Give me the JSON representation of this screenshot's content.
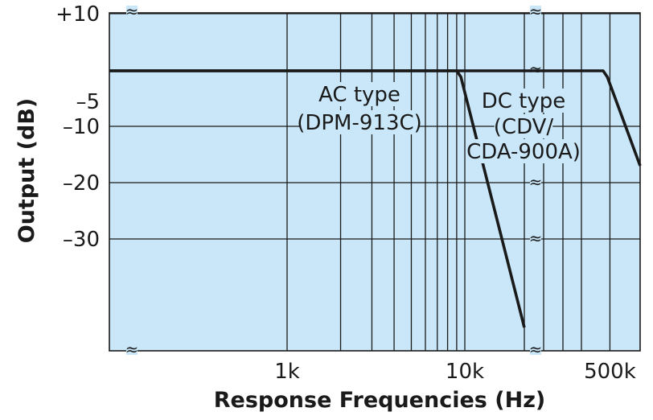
{
  "chart_data": {
    "type": "line",
    "title": "",
    "xlabel": "Response Frequencies (Hz)",
    "ylabel": "Output (dB)",
    "x_scale": "log",
    "x_ticks": [
      {
        "value": 1000,
        "label": "1k"
      },
      {
        "value": 10000,
        "label": "10k"
      },
      {
        "value": 500000,
        "label": "500k"
      }
    ],
    "y_ticks": [
      {
        "value": 10,
        "label": "+10"
      },
      {
        "value": -5,
        "label": "–5"
      },
      {
        "value": -10,
        "label": "–10"
      },
      {
        "value": -20,
        "label": "–20"
      },
      {
        "value": -30,
        "label": "–30"
      }
    ],
    "grid": true,
    "axis_breaks": true,
    "series": [
      {
        "name": "AC type (DPM-913C)",
        "label_lines": [
          "AC type",
          "(DPM-913C)"
        ],
        "x": [
          30,
          9000,
          9500,
          20000
        ],
        "y": [
          0,
          0,
          -1,
          -45
        ]
      },
      {
        "name": "DC type (CDV/ CDA-900A)",
        "label_lines": [
          "DC type",
          "(CDV/",
          "CDA-900A)"
        ],
        "x": [
          30,
          450000,
          480000,
          800000
        ],
        "y": [
          0,
          0,
          -1,
          -17
        ]
      }
    ],
    "colors": {
      "plot_background": "#c9e7f8",
      "grid": "#1a1a1a",
      "line": "#1a1a1a"
    }
  }
}
